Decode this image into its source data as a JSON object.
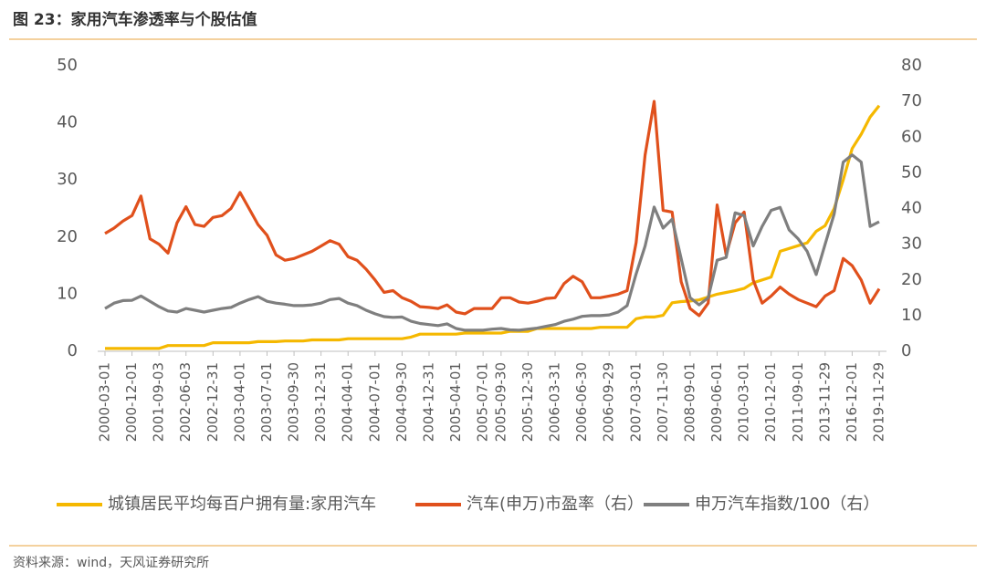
{
  "chart_data": {
    "type": "line",
    "title": "图 23：家用汽车渗透率与个股估值",
    "source": "资料来源：wind，天风证券研究所",
    "categories": [
      "2000-03-01",
      null,
      null,
      "2000-12-01",
      null,
      null,
      "2001-09-03",
      null,
      null,
      "2002-06-03",
      null,
      null,
      "2002-12-31",
      null,
      null,
      "2003-04-01",
      null,
      null,
      "2003-07-01",
      null,
      null,
      "2003-09-30",
      null,
      null,
      "2003-12-31",
      null,
      null,
      "2004-04-01",
      null,
      null,
      "2004-07-01",
      null,
      null,
      "2004-09-30",
      null,
      null,
      "2004-12-31",
      null,
      null,
      "2005-04-01",
      null,
      null,
      "2005-07-01",
      null,
      "2005-09-30",
      null,
      null,
      "2005-12-30",
      null,
      null,
      "2006-03-31",
      null,
      null,
      "2006-06-30",
      null,
      null,
      "2006-09-29",
      null,
      null,
      "2007-03-01",
      null,
      null,
      "2007-11-30",
      null,
      null,
      "2008-09-01",
      null,
      null,
      "2009-06-01",
      null,
      null,
      "2010-03-01",
      null,
      null,
      "2010-12-01",
      null,
      null,
      "2011-09-01",
      null,
      null,
      "2013-11-29",
      null,
      null,
      "2016-12-01",
      null,
      null,
      "2019-11-29"
    ],
    "series": [
      {
        "name": "城镇居民平均每百户拥有量:家用汽车",
        "color": "#f5b800",
        "axis": "y",
        "values": [
          0.5,
          0.5,
          0.5,
          0.5,
          0.5,
          0.5,
          0.5,
          1.0,
          1.0,
          1.0,
          1.0,
          1.0,
          1.5,
          1.5,
          1.5,
          1.5,
          1.5,
          1.7,
          1.7,
          1.7,
          1.8,
          1.8,
          1.8,
          2.0,
          2.0,
          2.0,
          2.0,
          2.2,
          2.2,
          2.2,
          2.2,
          2.2,
          2.2,
          2.2,
          2.5,
          3.0,
          3.0,
          3.0,
          3.0,
          3.0,
          3.2,
          3.2,
          3.2,
          3.2,
          3.2,
          3.5,
          3.5,
          3.5,
          4.0,
          4.0,
          4.0,
          4.0,
          4.0,
          4.0,
          4.0,
          4.2,
          4.2,
          4.2,
          4.2,
          5.7,
          6.0,
          6.0,
          6.3,
          8.5,
          8.7,
          8.8,
          9.0,
          9.5,
          10.0,
          10.3,
          10.6,
          11.0,
          12.0,
          12.5,
          13.0,
          17.5,
          18.0,
          18.5,
          19.0,
          21.0,
          22.0,
          25.0,
          30.0,
          35.5,
          38.0,
          41.0,
          43.0
        ]
      },
      {
        "name": "汽车(申万)市盈率（右）",
        "color": "#e0501c",
        "axis": "y2",
        "values": [
          33,
          34.5,
          36.5,
          38,
          43.5,
          31.5,
          30,
          27.5,
          36,
          40.5,
          35.5,
          35,
          37.5,
          38,
          40,
          44.5,
          40,
          35.5,
          32.5,
          27,
          25.5,
          26,
          27,
          28,
          29.5,
          31,
          30,
          26.5,
          25.5,
          23,
          20,
          16.5,
          17,
          15,
          14,
          12.5,
          12.3,
          12,
          13,
          11,
          10.5,
          12,
          12,
          12,
          15,
          15,
          13.8,
          13.5,
          14,
          14.8,
          15,
          19,
          21,
          19.5,
          15,
          15,
          15.5,
          16,
          17,
          30.5,
          55,
          70,
          39.5,
          39,
          19.5,
          12,
          10,
          13.5,
          41,
          27,
          36,
          39,
          20,
          13.5,
          15.5,
          18,
          16,
          14.5,
          13.5,
          12.5,
          15.5,
          17,
          26,
          24,
          20,
          13.5,
          17.5
        ]
      },
      {
        "name": "申万汽车指数/100（右）",
        "color": "#7f7f7f",
        "axis": "y2",
        "values": [
          12,
          13.5,
          14.2,
          14.3,
          15.5,
          14,
          12.5,
          11.3,
          11,
          12,
          11.5,
          11,
          11.5,
          12,
          12.3,
          13.5,
          14.5,
          15.3,
          14,
          13.5,
          13.2,
          12.8,
          12.8,
          13,
          13.5,
          14.5,
          14.8,
          13.5,
          12.8,
          11.5,
          10.5,
          9.7,
          9.5,
          9.6,
          8.4,
          7.8,
          7.5,
          7.2,
          7.7,
          6.4,
          5.9,
          5.9,
          5.9,
          6.2,
          6.4,
          6,
          5.9,
          6.2,
          6.5,
          7,
          7.5,
          8.4,
          9,
          9.8,
          10,
          10,
          10.2,
          11,
          12.8,
          21.7,
          29.5,
          40.4,
          34.5,
          37,
          26,
          15,
          13,
          15,
          25.5,
          26.3,
          38.8,
          38,
          29.5,
          35,
          39.5,
          40.3,
          34,
          31.5,
          28,
          21.5,
          30,
          38.5,
          53,
          55,
          53,
          35,
          36.3
        ]
      }
    ],
    "ylim": [
      0,
      50
    ],
    "yticks": [
      0,
      10,
      20,
      30,
      40,
      50
    ],
    "y2lim": [
      0,
      80
    ],
    "y2ticks": [
      0,
      10,
      20,
      30,
      40,
      50,
      60,
      70,
      80
    ],
    "grid": false
  }
}
